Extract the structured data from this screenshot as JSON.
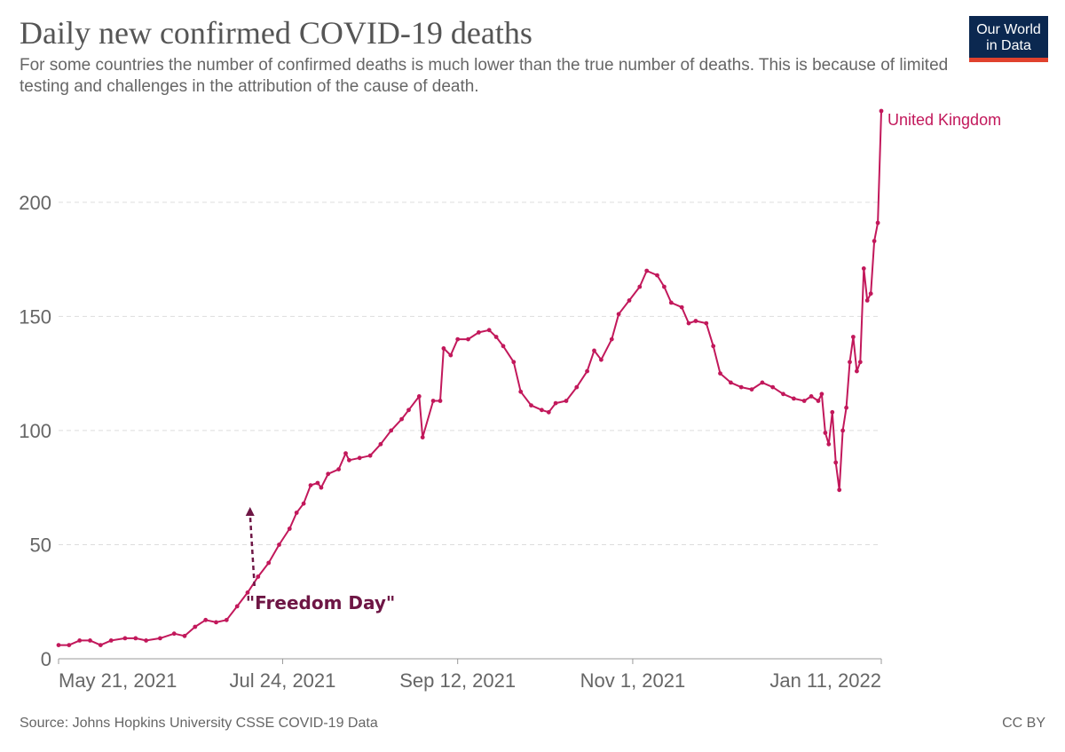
{
  "header": {
    "title": "Daily new confirmed COVID-19 deaths",
    "subtitle": "For some countries the number of confirmed deaths is much lower than the true number of deaths. This is because of limited testing and challenges in the attribution of the cause of death.",
    "logo_line1": "Our World",
    "logo_line2": "in Data"
  },
  "footer": {
    "source": "Source: Johns Hopkins University CSSE COVID-19 Data",
    "license": "CC BY"
  },
  "colors": {
    "series": "#c2185b",
    "annotation": "#6e1645",
    "grid": "#dddddd",
    "text": "#666666"
  },
  "chart_data": {
    "type": "line",
    "title": "Daily new confirmed COVID-19 deaths",
    "xlabel": "",
    "ylabel": "",
    "x_start": "2021-05-21",
    "x_end": "2022-01-11",
    "ylim": [
      0,
      240
    ],
    "yticks": [
      0,
      50,
      100,
      150,
      200
    ],
    "ytick_labels": [
      "0",
      "50",
      "100",
      "150",
      "200"
    ],
    "xticks": [
      "2021-05-21",
      "2021-07-24",
      "2021-09-12",
      "2021-11-01",
      "2022-01-11"
    ],
    "xtick_labels": [
      "May 21, 2021",
      "Jul 24, 2021",
      "Sep 12, 2021",
      "Nov 1, 2021",
      "Jan 11, 2022"
    ],
    "grid": "horizontal dashed",
    "legend": "inline label at line end",
    "series": [
      {
        "name": "United Kingdom",
        "color": "#c2185b",
        "points": [
          [
            "2021-05-21",
            6
          ],
          [
            "2021-05-24",
            6
          ],
          [
            "2021-05-27",
            8
          ],
          [
            "2021-05-30",
            8
          ],
          [
            "2021-06-02",
            6
          ],
          [
            "2021-06-05",
            8
          ],
          [
            "2021-06-09",
            9
          ],
          [
            "2021-06-12",
            9
          ],
          [
            "2021-06-15",
            8
          ],
          [
            "2021-06-19",
            9
          ],
          [
            "2021-06-23",
            11
          ],
          [
            "2021-06-26",
            10
          ],
          [
            "2021-06-29",
            14
          ],
          [
            "2021-07-02",
            17
          ],
          [
            "2021-07-05",
            16
          ],
          [
            "2021-07-08",
            17
          ],
          [
            "2021-07-11",
            23
          ],
          [
            "2021-07-14",
            29
          ],
          [
            "2021-07-17",
            36
          ],
          [
            "2021-07-20",
            42
          ],
          [
            "2021-07-23",
            50
          ],
          [
            "2021-07-26",
            57
          ],
          [
            "2021-07-28",
            64
          ],
          [
            "2021-07-30",
            68
          ],
          [
            "2021-08-01",
            76
          ],
          [
            "2021-08-03",
            77
          ],
          [
            "2021-08-04",
            75
          ],
          [
            "2021-08-06",
            81
          ],
          [
            "2021-08-09",
            83
          ],
          [
            "2021-08-11",
            90
          ],
          [
            "2021-08-12",
            87
          ],
          [
            "2021-08-15",
            88
          ],
          [
            "2021-08-18",
            89
          ],
          [
            "2021-08-21",
            94
          ],
          [
            "2021-08-24",
            100
          ],
          [
            "2021-08-27",
            105
          ],
          [
            "2021-08-29",
            109
          ],
          [
            "2021-09-01",
            115
          ],
          [
            "2021-09-02",
            97
          ],
          [
            "2021-09-05",
            113
          ],
          [
            "2021-09-07",
            113
          ],
          [
            "2021-09-08",
            136
          ],
          [
            "2021-09-10",
            133
          ],
          [
            "2021-09-12",
            140
          ],
          [
            "2021-09-15",
            140
          ],
          [
            "2021-09-18",
            143
          ],
          [
            "2021-09-21",
            144
          ],
          [
            "2021-09-23",
            141
          ],
          [
            "2021-09-25",
            137
          ],
          [
            "2021-09-28",
            130
          ],
          [
            "2021-09-30",
            117
          ],
          [
            "2021-10-03",
            111
          ],
          [
            "2021-10-06",
            109
          ],
          [
            "2021-10-08",
            108
          ],
          [
            "2021-10-10",
            112
          ],
          [
            "2021-10-13",
            113
          ],
          [
            "2021-10-16",
            119
          ],
          [
            "2021-10-19",
            126
          ],
          [
            "2021-10-21",
            135
          ],
          [
            "2021-10-23",
            131
          ],
          [
            "2021-10-26",
            140
          ],
          [
            "2021-10-28",
            151
          ],
          [
            "2021-10-31",
            157
          ],
          [
            "2021-11-03",
            163
          ],
          [
            "2021-11-05",
            170
          ],
          [
            "2021-11-08",
            168
          ],
          [
            "2021-11-10",
            163
          ],
          [
            "2021-11-12",
            156
          ],
          [
            "2021-11-15",
            154
          ],
          [
            "2021-11-17",
            147
          ],
          [
            "2021-11-19",
            148
          ],
          [
            "2021-11-22",
            147
          ],
          [
            "2021-11-24",
            137
          ],
          [
            "2021-11-26",
            125
          ],
          [
            "2021-11-29",
            121
          ],
          [
            "2021-12-02",
            119
          ],
          [
            "2021-12-05",
            118
          ],
          [
            "2021-12-08",
            121
          ],
          [
            "2021-12-11",
            119
          ],
          [
            "2021-12-14",
            116
          ],
          [
            "2021-12-17",
            114
          ],
          [
            "2021-12-20",
            113
          ],
          [
            "2021-12-22",
            115
          ],
          [
            "2021-12-24",
            113
          ],
          [
            "2021-12-25",
            116
          ],
          [
            "2021-12-26",
            99
          ],
          [
            "2021-12-27",
            94
          ],
          [
            "2021-12-28",
            108
          ],
          [
            "2021-12-29",
            86
          ],
          [
            "2021-12-30",
            74
          ],
          [
            "2021-12-31",
            100
          ],
          [
            "2022-01-01",
            110
          ],
          [
            "2022-01-02",
            130
          ],
          [
            "2022-01-03",
            141
          ],
          [
            "2022-01-04",
            126
          ],
          [
            "2022-01-05",
            130
          ],
          [
            "2022-01-06",
            171
          ],
          [
            "2022-01-07",
            157
          ],
          [
            "2022-01-08",
            160
          ],
          [
            "2022-01-09",
            183
          ],
          [
            "2022-01-10",
            191
          ],
          [
            "2022-01-11",
            240
          ]
        ]
      }
    ],
    "annotations": [
      {
        "text": "\"Freedom Day\"",
        "x": "2021-07-19",
        "y": 70
      }
    ]
  }
}
